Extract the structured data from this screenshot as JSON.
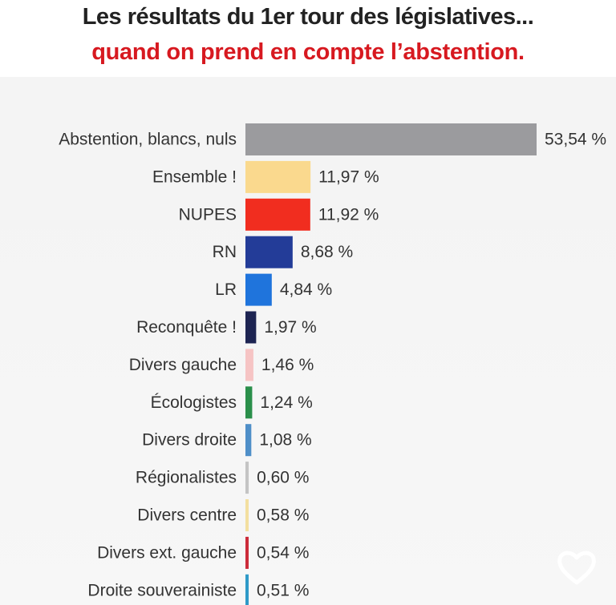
{
  "title_line1": "Les résultats du 1er tour des législatives...",
  "title_line2": "quand on prend en compte l’abstention.",
  "chart_data": {
    "type": "bar",
    "orientation": "horizontal",
    "title": "Les résultats du 1er tour des législatives... quand on prend en compte l’abstention.",
    "xlabel": "",
    "ylabel": "",
    "unit": "%",
    "grid": false,
    "legend": "none",
    "categories": [
      "Abstention, blancs, nuls",
      "Ensemble !",
      "NUPES",
      "RN",
      "LR",
      "Reconquête !",
      "Divers gauche",
      "Écologistes",
      "Divers droite",
      "Régionalistes",
      "Divers centre",
      "Divers ext. gauche",
      "Droite souverainiste"
    ],
    "values": [
      53.54,
      11.97,
      11.92,
      8.68,
      4.84,
      1.97,
      1.46,
      1.24,
      1.08,
      0.6,
      0.58,
      0.54,
      0.51
    ],
    "value_labels": [
      "53,54 %",
      "11,97 %",
      "11,92 %",
      "8,68 %",
      "4,84 %",
      "1,97 %",
      "1,46 %",
      "1,24 %",
      "1,08 %",
      "0,60 %",
      "0,58 %",
      "0,54 %",
      "0,51 %"
    ],
    "colors": [
      "#9b9b9e",
      "#fad98e",
      "#f12d1f",
      "#233c98",
      "#1f74dc",
      "#1d2452",
      "#f6c4c4",
      "#2a8f4a",
      "#4f8fc8",
      "#c4c4c4",
      "#f3dfa0",
      "#cc2b3a",
      "#2f9ac8"
    ],
    "xlim": [
      0,
      53.54
    ]
  },
  "icons": {
    "like": "heart-outline-icon"
  }
}
